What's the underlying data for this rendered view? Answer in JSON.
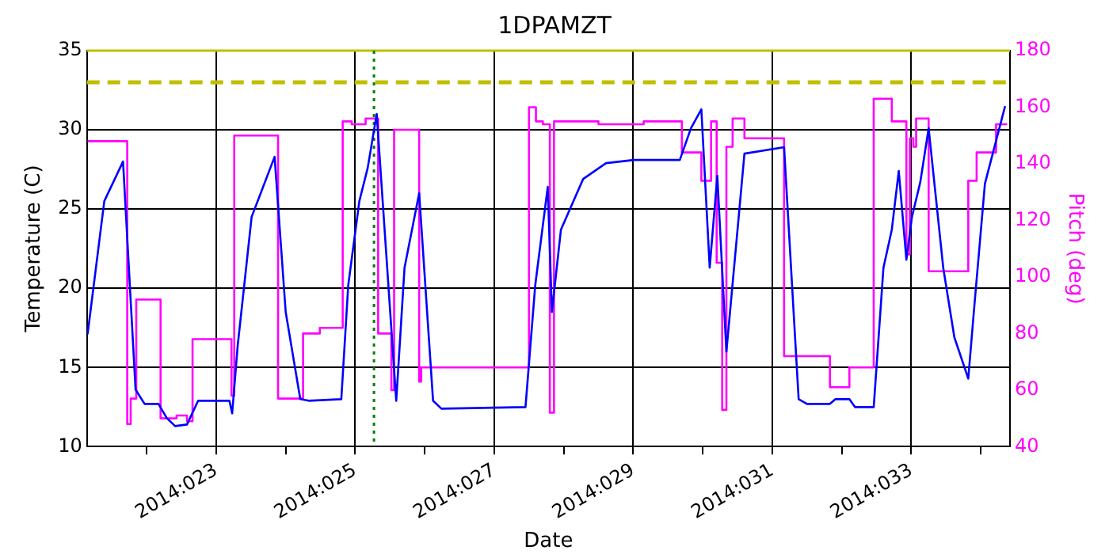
{
  "chart_data": {
    "type": "line",
    "title": "1DPAMZT",
    "xlabel": "Date",
    "ylabel": "Temperature (C)",
    "y2label": "Pitch (deg)",
    "xlim": [
      "2014-01-21T03:22",
      "2014-02-03T10:05"
    ],
    "xticks": [
      {
        "value": "2014-01-22",
        "label": null
      },
      {
        "value": "2014-01-23",
        "label": "2014:023"
      },
      {
        "value": "2014-01-24",
        "label": null
      },
      {
        "value": "2014-01-25",
        "label": "2014:025"
      },
      {
        "value": "2014-01-26",
        "label": null
      },
      {
        "value": "2014-01-27",
        "label": "2014:027"
      },
      {
        "value": "2014-01-28",
        "label": null
      },
      {
        "value": "2014-01-29",
        "label": "2014:029"
      },
      {
        "value": "2014-01-30",
        "label": null
      },
      {
        "value": "2014-01-31",
        "label": "2014:031"
      },
      {
        "value": "2014-02-01",
        "label": null
      },
      {
        "value": "2014-02-02",
        "label": "2014:033"
      },
      {
        "value": "2014-02-03",
        "label": null
      }
    ],
    "ylim": [
      10,
      35
    ],
    "yticks": [
      10,
      15,
      20,
      25,
      30,
      35
    ],
    "y2lim": [
      40,
      180
    ],
    "y2ticks": [
      40,
      60,
      80,
      100,
      120,
      140,
      160,
      180
    ],
    "grid": true,
    "marker": "none",
    "line_style": "solid",
    "ref_lines": [
      {
        "axis": "y",
        "value": 33,
        "label": null,
        "color": "#bfbf00",
        "line_style": "dashed"
      },
      {
        "axis": "y",
        "value": 35,
        "label": null,
        "color": "#bfbf00",
        "line_style": "solid"
      },
      {
        "axis": "x",
        "value": "2014-01-25T06:29",
        "label": null,
        "color": "#008000",
        "line_style": "dotted"
      }
    ],
    "series": [
      {
        "type": "line",
        "axis": "y",
        "color": "#0000ff",
        "x": [
          "2014-01-21T03:36",
          "2014-01-21T09:22",
          "2014-01-21T15:50",
          "2014-01-21T20:10",
          "2014-01-21T23:17",
          "2014-01-22T04:05",
          "2014-01-22T06:58",
          "2014-01-22T09:50",
          "2014-01-22T13:55",
          "2014-01-22T17:46",
          "2014-01-23T04:34",
          "2014-01-23T05:31",
          "2014-01-23T07:26",
          "2014-01-23T12:14",
          "2014-01-23T20:10",
          "2014-01-24T00:00",
          "2014-01-24T05:02",
          "2014-01-24T07:55",
          "2014-01-24T19:12",
          "2014-01-24T21:36",
          "2014-01-25T01:26",
          "2014-01-25T04:19",
          "2014-01-25T07:26",
          "2014-01-25T14:10",
          "2014-01-25T17:02",
          "2014-01-25T22:05",
          "2014-01-26T02:53",
          "2014-01-26T05:46",
          "2014-01-27T10:48",
          "2014-01-27T14:10",
          "2014-01-27T18:29",
          "2014-01-27T19:55",
          "2014-01-27T23:02",
          "2014-01-28T06:43",
          "2014-01-28T14:38",
          "2014-01-29T00:14",
          "2014-01-29T16:05",
          "2014-01-29T19:55",
          "2014-01-29T23:31",
          "2014-01-30T02:24",
          "2014-01-30T05:02",
          "2014-01-30T08:10",
          "2014-01-30T11:31",
          "2014-01-30T14:24",
          "2014-01-31T04:05",
          "2014-01-31T09:07",
          "2014-01-31T12:00",
          "2014-01-31T19:55",
          "2014-01-31T21:50",
          "2014-02-01T02:38",
          "2014-02-01T04:34",
          "2014-02-01T11:02",
          "2014-02-01T14:24",
          "2014-02-01T17:17",
          "2014-02-01T19:41",
          "2014-02-01T22:19",
          "2014-02-02T00:14",
          "2014-02-02T03:07",
          "2014-02-02T06:00",
          "2014-02-02T11:02",
          "2014-02-02T14:53",
          "2014-02-02T19:41",
          "2014-02-02T21:36",
          "2014-02-03T01:26",
          "2014-02-03T08:24"
        ],
        "values": [
          17.1,
          25.5,
          28.0,
          13.6,
          12.7,
          12.7,
          11.8,
          11.3,
          11.4,
          12.9,
          12.9,
          12.1,
          16.4,
          24.5,
          28.3,
          18.5,
          13.0,
          12.9,
          13.0,
          20.2,
          25.5,
          27.6,
          31.0,
          12.9,
          21.3,
          26.0,
          12.9,
          12.4,
          12.5,
          20.2,
          26.4,
          18.5,
          23.7,
          26.9,
          27.9,
          28.1,
          28.1,
          30.1,
          31.3,
          21.3,
          27.1,
          16.0,
          22.7,
          28.5,
          28.9,
          13.0,
          12.7,
          12.7,
          13.0,
          13.0,
          12.5,
          12.5,
          21.3,
          23.7,
          27.4,
          21.8,
          24.5,
          26.7,
          30.1,
          21.3,
          16.9,
          14.3,
          18.5,
          26.6,
          31.5
        ]
      },
      {
        "type": "step",
        "axis": "y2",
        "color": "#ff00ff",
        "x": [
          "2014-01-21T03:36",
          "2014-01-21T17:17",
          "2014-01-21T18:29",
          "2014-01-21T20:24",
          "2014-01-22T04:48",
          "2014-01-22T10:19",
          "2014-01-22T13:55",
          "2014-01-22T15:50",
          "2014-01-23T05:17",
          "2014-01-23T06:14",
          "2014-01-23T21:22",
          "2014-01-24T06:00",
          "2014-01-24T11:46",
          "2014-01-24T19:41",
          "2014-01-24T22:48",
          "2014-01-25T03:36",
          "2014-01-25T07:55",
          "2014-01-25T12:29",
          "2014-01-25T13:26",
          "2014-01-25T22:05",
          "2014-01-25T22:48",
          "2014-01-27T12:00",
          "2014-01-27T14:24",
          "2014-01-27T16:48",
          "2014-01-27T19:12",
          "2014-01-27T20:38",
          "2014-01-28T12:00",
          "2014-01-29T03:36",
          "2014-01-29T16:48",
          "2014-01-29T23:31",
          "2014-01-30T02:53",
          "2014-01-30T04:48",
          "2014-01-30T06:43",
          "2014-01-30T08:10",
          "2014-01-30T10:19",
          "2014-01-30T14:24",
          "2014-01-31T04:05",
          "2014-01-31T19:55",
          "2014-02-01T02:38",
          "2014-02-01T11:02",
          "2014-02-01T17:17",
          "2014-02-01T22:19",
          "2014-02-01T23:31",
          "2014-02-02T00:43",
          "2014-02-02T01:41",
          "2014-02-02T06:00",
          "2014-02-02T19:41",
          "2014-02-02T22:34",
          "2014-02-03T05:17",
          "2014-02-03T09:07"
        ],
        "values": [
          148,
          48,
          57,
          92,
          50,
          51,
          49,
          78,
          58,
          150,
          57,
          80,
          82,
          155,
          154,
          156,
          80,
          60,
          152,
          63,
          68,
          160,
          155,
          154,
          52,
          155,
          154,
          155,
          144,
          134,
          155,
          105,
          53,
          146,
          156,
          149,
          72,
          61,
          68,
          163,
          155,
          108,
          149,
          146,
          156,
          102,
          134,
          144,
          154,
          154
        ]
      }
    ]
  }
}
